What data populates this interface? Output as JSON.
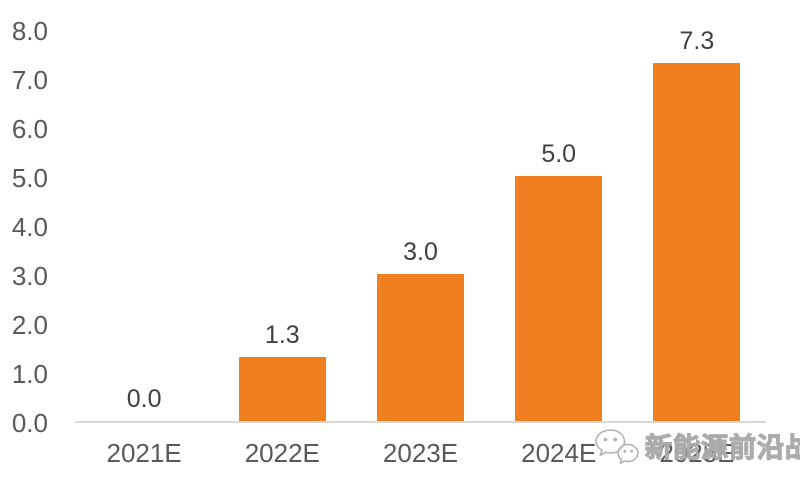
{
  "watermark": {
    "text": "新能源前沿战队",
    "icon": "wechat-icon"
  },
  "chart_data": {
    "type": "bar",
    "categories": [
      "2021E",
      "2022E",
      "2023E",
      "2024E",
      "2025E"
    ],
    "values": [
      0.0,
      1.3,
      3.0,
      5.0,
      7.3
    ],
    "data_labels": [
      "0.0",
      "1.3",
      "3.0",
      "5.0",
      "7.3"
    ],
    "title": "",
    "xlabel": "",
    "ylabel": "",
    "ylim": [
      0,
      8
    ],
    "ytick_step": 1,
    "ytick_labels": [
      "0.0",
      "1.0",
      "2.0",
      "3.0",
      "4.0",
      "5.0",
      "6.0",
      "7.0",
      "8.0"
    ],
    "grid": false,
    "legend": false,
    "bar_color": "#F0801F",
    "tick_text_color": "#595959",
    "data_label_color": "#404040",
    "axis_line_color": "#D9D9D9"
  }
}
